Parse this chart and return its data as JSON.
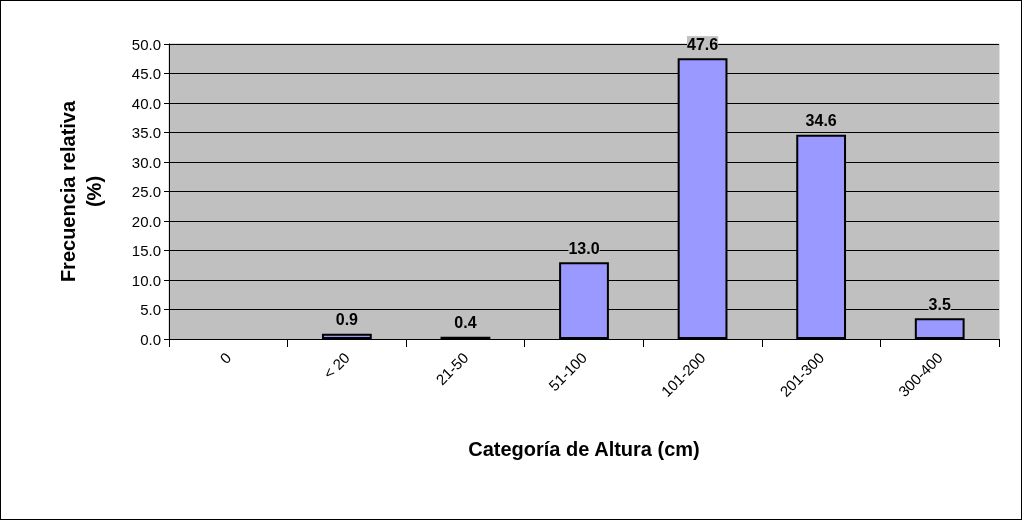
{
  "chart_data": {
    "type": "bar",
    "xlabel": "Categoría de Altura (cm)",
    "ylabel": "Frecuencia relativa\n(%)",
    "categories": [
      "0",
      "< 20",
      "21-50",
      "51-100",
      "101-200",
      "201-300",
      "300-400"
    ],
    "values": [
      null,
      0.9,
      0.4,
      13.0,
      47.6,
      34.6,
      3.5
    ],
    "value_labels": [
      null,
      "0.9",
      "0.4",
      "13.0",
      "47.6",
      "34.6",
      "3.5"
    ],
    "color": "#9999ff",
    "ylim": [
      0,
      50
    ],
    "yticks": [
      {
        "value": 0,
        "label": "0.0"
      },
      {
        "value": 5,
        "label": "5.0"
      },
      {
        "value": 10,
        "label": "10.0"
      },
      {
        "value": 15,
        "label": "15.0"
      },
      {
        "value": 20,
        "label": "20.0"
      },
      {
        "value": 25,
        "label": "25.0"
      },
      {
        "value": 30,
        "label": "30.0"
      },
      {
        "value": 35,
        "label": "35.0"
      },
      {
        "value": 40,
        "label": "40.0"
      },
      {
        "value": 45,
        "label": "45.0"
      },
      {
        "value": 50,
        "label": "50.0"
      }
    ],
    "grid": "y"
  }
}
